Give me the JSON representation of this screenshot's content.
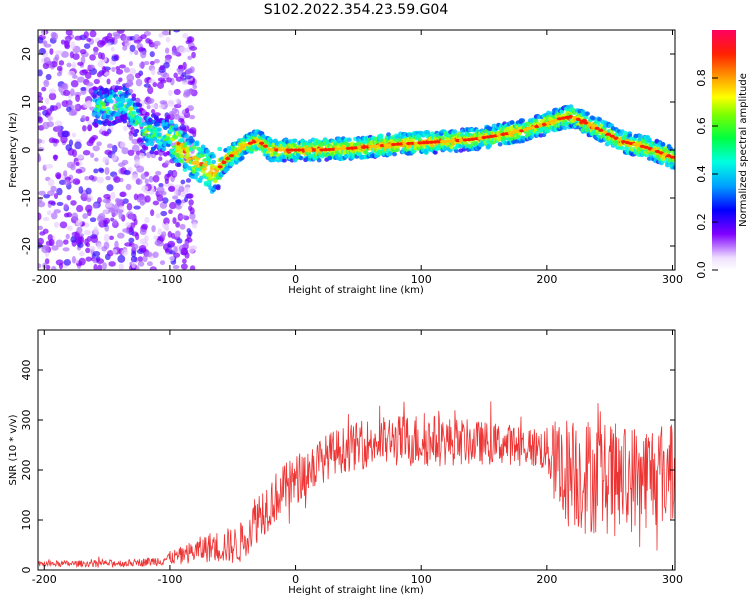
{
  "figure": {
    "title": "S102.2022.354.23.59.G04"
  },
  "chart_data": [
    {
      "type": "heatmap",
      "xlabel": "Height of straight line (km)",
      "ylabel": "Frequency (Hz)",
      "xlim": [
        -205,
        302
      ],
      "ylim": [
        -25,
        25
      ],
      "x_ticks": [
        -200,
        -100,
        0,
        100,
        200,
        300
      ],
      "y_ticks": [
        -20,
        -10,
        0,
        10,
        20
      ],
      "colorbar": {
        "label": "Normalized spectral amplitude",
        "range": [
          0,
          1
        ],
        "ticks": [
          "0.0",
          "0.2",
          "0.4",
          "0.6",
          "0.8"
        ]
      },
      "ridge": {
        "x": [
          -150,
          -135,
          -120,
          -110,
          -100,
          -90,
          -80,
          -70,
          -65,
          -55,
          -40,
          -30,
          -20,
          0,
          20,
          40,
          60,
          80,
          100,
          120,
          140,
          160,
          180,
          200,
          210,
          220,
          240,
          260,
          280,
          300
        ],
        "freq": [
          9,
          10,
          4,
          3,
          3,
          0,
          -2,
          -4,
          -5,
          -2,
          1,
          2,
          0,
          0,
          0,
          0.3,
          0.7,
          1.2,
          1.5,
          1.8,
          2.2,
          3,
          4,
          5.5,
          6.5,
          7,
          4.5,
          1.8,
          0.5,
          -1.5
        ]
      }
    },
    {
      "type": "line",
      "xlabel": "Height of straight line (km)",
      "ylabel": "SNR (10 * v/v)",
      "xlim": [
        -205,
        302
      ],
      "ylim": [
        0,
        480
      ],
      "x_ticks": [
        -200,
        -100,
        0,
        100,
        200,
        300
      ],
      "y_ticks": [
        0,
        100,
        200,
        300,
        400
      ],
      "color": "#ee3333",
      "envelope": {
        "x": [
          -205,
          -130,
          -110,
          -90,
          -70,
          -45,
          -30,
          -10,
          10,
          30,
          60,
          100,
          140,
          180,
          200,
          210,
          230,
          260,
          300
        ],
        "mean": [
          12,
          14,
          18,
          30,
          45,
          50,
          110,
          160,
          200,
          235,
          255,
          260,
          255,
          250,
          240,
          200,
          190,
          180,
          200
        ],
        "spread": [
          6,
          7,
          10,
          18,
          30,
          40,
          55,
          50,
          50,
          45,
          50,
          55,
          45,
          40,
          45,
          110,
          120,
          110,
          110
        ]
      }
    }
  ]
}
